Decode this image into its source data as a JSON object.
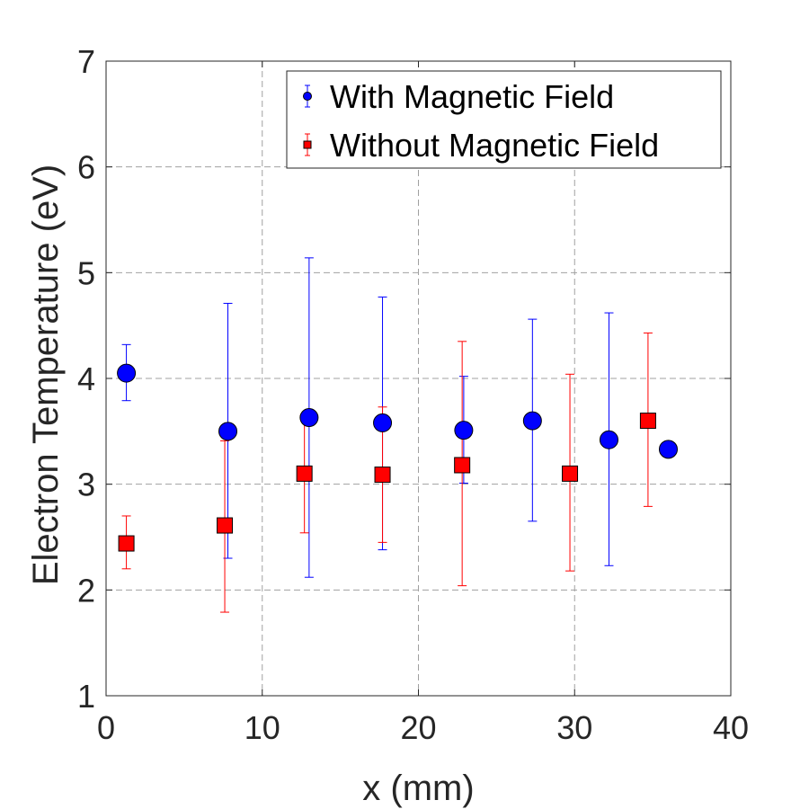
{
  "chart_data": {
    "type": "scatter",
    "title": "",
    "xlabel": "x (mm)",
    "ylabel": "Electron Temperature (eV)",
    "xlim": [
      0,
      40
    ],
    "ylim": [
      1,
      7
    ],
    "xticks": [
      0,
      10,
      20,
      30,
      40
    ],
    "yticks": [
      1,
      2,
      3,
      4,
      5,
      6,
      7
    ],
    "xtick_labels": [
      "0",
      "10",
      "20",
      "30",
      "40"
    ],
    "ytick_labels": [
      "1",
      "2",
      "3",
      "4",
      "5",
      "6",
      "7"
    ],
    "grid": true,
    "legend_position": "top-right",
    "series": [
      {
        "name": "With Magnetic Field",
        "color": "#0000ff",
        "marker": "circle",
        "x": [
          1.3,
          7.8,
          13.0,
          17.7,
          22.9,
          27.3,
          32.2,
          36.0
        ],
        "y": [
          4.05,
          3.5,
          3.63,
          3.58,
          3.51,
          3.6,
          3.42,
          3.33
        ],
        "err_low": [
          3.79,
          2.3,
          2.12,
          2.38,
          3.01,
          2.65,
          2.23,
          null
        ],
        "err_high": [
          4.32,
          4.71,
          5.14,
          4.77,
          4.02,
          4.56,
          4.62,
          null
        ]
      },
      {
        "name": "Without Magnetic Field",
        "color": "#ff0000",
        "marker": "square",
        "x": [
          1.3,
          7.6,
          12.7,
          17.7,
          22.8,
          29.7,
          34.7
        ],
        "y": [
          2.44,
          2.61,
          3.1,
          3.09,
          3.18,
          3.1,
          3.6
        ],
        "err_low": [
          2.2,
          1.79,
          2.54,
          2.45,
          2.04,
          2.18,
          2.79
        ],
        "err_high": [
          2.7,
          3.41,
          3.65,
          3.73,
          4.35,
          4.04,
          4.43
        ]
      }
    ]
  }
}
